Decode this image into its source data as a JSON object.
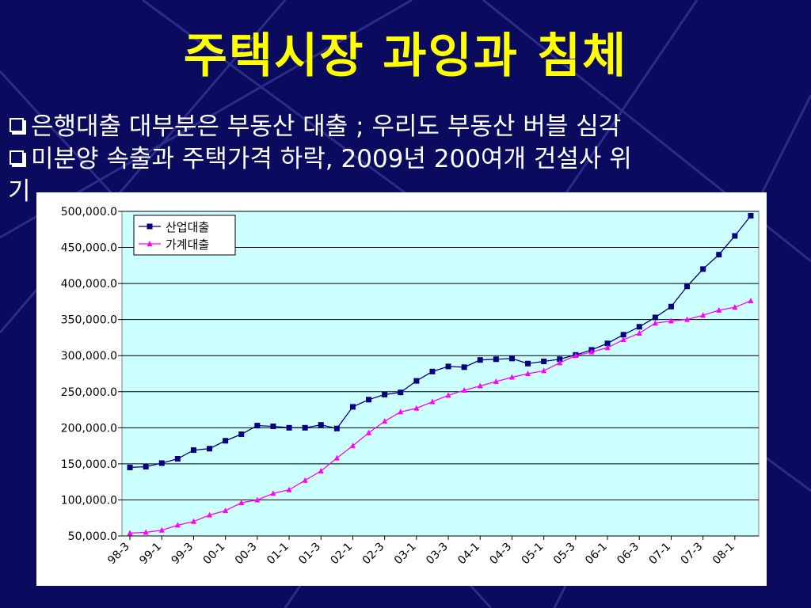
{
  "slide": {
    "title": "주택시장 과잉과 침체",
    "bullets": [
      "은행대출 대부분은 부동산 대출 ; 우리도 부동산 버블 심각",
      "미분양 속출과 주택가격 하락, 2009년 200여개 건설사 위",
      "기"
    ],
    "colors": {
      "background": "#0a0a5e",
      "title": "#ffff00",
      "text": "#ffffff"
    }
  },
  "chart_data": {
    "type": "line",
    "xlabel": "",
    "ylabel": "",
    "ylim": [
      50000,
      500000
    ],
    "yticks": [
      "500,000.0",
      "450,000.0",
      "400,000.0",
      "350,000.0",
      "300,000.0",
      "250,000.0",
      "200,000.0",
      "150,000.0",
      "100,000.0",
      "50,000.0"
    ],
    "x_tick_labels": [
      "98-3",
      "99-1",
      "99-3",
      "00-1",
      "00-3",
      "01-1",
      "01-3",
      "02-1",
      "02-3",
      "03-1",
      "03-3",
      "04-1",
      "04-3",
      "05-1",
      "05-3",
      "06-1",
      "06-3",
      "07-1",
      "07-3",
      "08-1"
    ],
    "grid": "horizontal",
    "plot_background": "#ccffff",
    "legend_position": "top-left",
    "series": [
      {
        "name": "산업대출",
        "color": "#000080",
        "marker": "square",
        "values": [
          145000,
          146000,
          151000,
          157000,
          169000,
          171000,
          182000,
          191000,
          203000,
          202000,
          200000,
          200000,
          204000,
          199000,
          229000,
          239000,
          246000,
          249000,
          265000,
          278000,
          285000,
          284000,
          294000,
          295000,
          296000,
          289000,
          292000,
          295000,
          301000,
          308000,
          317000,
          329000,
          340000,
          353000,
          368000,
          396000,
          420000,
          440000,
          466000,
          494000
        ]
      },
      {
        "name": "가계대출",
        "color": "#ff00ff",
        "marker": "triangle",
        "values": [
          54000,
          55000,
          58000,
          65000,
          70000,
          79000,
          85000,
          96000,
          100000,
          109000,
          114000,
          127000,
          140000,
          158000,
          175000,
          193000,
          209000,
          222000,
          227000,
          236000,
          245000,
          252000,
          258000,
          264000,
          270000,
          275000,
          279000,
          290000,
          300000,
          305000,
          311000,
          322000,
          331000,
          345000,
          348000,
          350000,
          356000,
          363000,
          367000,
          376000
        ]
      }
    ]
  }
}
